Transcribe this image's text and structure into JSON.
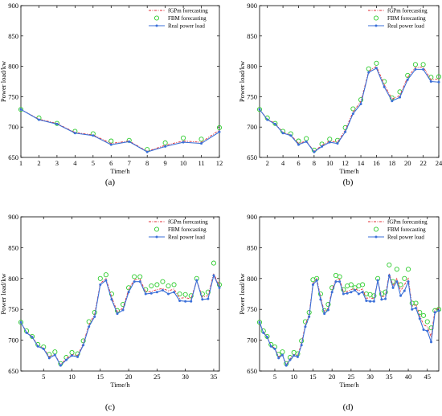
{
  "panels_meta": {
    "legend": {
      "fgpm": "fGPm forecasting",
      "fbm": "FBM forecasting",
      "real": "Real power load"
    },
    "colors": {
      "fgpm": "#e0323a",
      "fbm": "#2ecc2e",
      "real": "#3a6fd8"
    },
    "legend_position": "top-right",
    "grid": false
  },
  "chart_data": [
    {
      "type": "line",
      "label": "(a)",
      "xlabel": "Time/h",
      "ylabel": "Power load/kw",
      "xlim": [
        1,
        12
      ],
      "ylim": [
        650,
        900
      ],
      "xticks": [
        1,
        2,
        3,
        4,
        5,
        6,
        7,
        8,
        9,
        10,
        11,
        12
      ],
      "yticks": [
        650,
        700,
        750,
        800,
        850,
        900
      ],
      "x": [
        1,
        2,
        3,
        4,
        5,
        6,
        7,
        8,
        9,
        10,
        11,
        12
      ],
      "series": [
        {
          "name": "fGPm forecasting",
          "values": [
            729,
            713,
            706,
            691,
            687,
            673,
            677,
            660,
            670,
            677,
            675,
            695
          ]
        },
        {
          "name": "FBM forecasting",
          "values": [
            729,
            715,
            706,
            693,
            689,
            677,
            678,
            663,
            674,
            682,
            680,
            699
          ]
        },
        {
          "name": "Real power load",
          "values": [
            729,
            712,
            705,
            690,
            686,
            671,
            676,
            659,
            668,
            675,
            673,
            692
          ]
        }
      ]
    },
    {
      "type": "line",
      "label": "(b)",
      "xlabel": "Time/h",
      "ylabel": "Power load/kw",
      "xlim": [
        1,
        24
      ],
      "ylim": [
        650,
        900
      ],
      "xticks": [
        2,
        4,
        6,
        8,
        10,
        12,
        14,
        16,
        18,
        20,
        22,
        24
      ],
      "yticks": [
        650,
        700,
        750,
        800,
        850,
        900
      ],
      "x": [
        1,
        2,
        3,
        4,
        5,
        6,
        7,
        8,
        9,
        10,
        11,
        12,
        13,
        14,
        15,
        16,
        17,
        18,
        19,
        20,
        21,
        22,
        23,
        24
      ],
      "series": [
        {
          "name": "fGPm forecasting",
          "values": [
            729,
            713,
            706,
            691,
            687,
            673,
            677,
            660,
            670,
            677,
            675,
            695,
            725,
            742,
            792,
            800,
            770,
            746,
            752,
            782,
            798,
            799,
            778,
            779
          ]
        },
        {
          "name": "FBM forecasting",
          "values": [
            729,
            715,
            706,
            693,
            689,
            677,
            681,
            662,
            672,
            680,
            678,
            699,
            730,
            745,
            796,
            805,
            775,
            748,
            758,
            785,
            803,
            803,
            782,
            783
          ]
        },
        {
          "name": "Real power load",
          "values": [
            729,
            712,
            705,
            690,
            686,
            671,
            676,
            659,
            668,
            675,
            673,
            692,
            722,
            738,
            790,
            797,
            766,
            743,
            749,
            778,
            795,
            795,
            775,
            774
          ]
        }
      ]
    },
    {
      "type": "line",
      "label": "(c)",
      "xlabel": "Time/h",
      "ylabel": "Power load/kw",
      "xlim": [
        1,
        36
      ],
      "ylim": [
        650,
        900
      ],
      "xticks": [
        5,
        10,
        15,
        20,
        25,
        30,
        35
      ],
      "yticks": [
        650,
        700,
        750,
        800,
        850,
        900
      ],
      "x": [
        1,
        2,
        3,
        4,
        5,
        6,
        7,
        8,
        9,
        10,
        11,
        12,
        13,
        14,
        15,
        16,
        17,
        18,
        19,
        20,
        21,
        22,
        23,
        24,
        25,
        26,
        27,
        28,
        29,
        30,
        31,
        32,
        33,
        34,
        35,
        36
      ],
      "series": [
        {
          "name": "fGPm forecasting",
          "values": [
            729,
            713,
            706,
            691,
            687,
            673,
            677,
            660,
            670,
            677,
            675,
            695,
            725,
            742,
            792,
            800,
            770,
            746,
            752,
            782,
            798,
            799,
            778,
            779,
            782,
            784,
            780,
            783,
            768,
            769,
            767,
            797,
            770,
            772,
            808,
            788
          ]
        },
        {
          "name": "FBM forecasting",
          "values": [
            729,
            715,
            706,
            693,
            689,
            677,
            681,
            662,
            672,
            680,
            678,
            699,
            730,
            745,
            800,
            806,
            775,
            748,
            758,
            785,
            803,
            803,
            782,
            788,
            790,
            795,
            788,
            790,
            775,
            774,
            772,
            800,
            775,
            778,
            825,
            790
          ]
        },
        {
          "name": "Real power load",
          "values": [
            729,
            712,
            705,
            690,
            686,
            671,
            676,
            659,
            668,
            675,
            673,
            692,
            722,
            738,
            790,
            797,
            766,
            743,
            749,
            778,
            795,
            795,
            775,
            776,
            778,
            781,
            775,
            778,
            764,
            763,
            763,
            797,
            766,
            767,
            805,
            785
          ]
        }
      ]
    },
    {
      "type": "line",
      "label": "(d)",
      "xlabel": "Time/h",
      "ylabel": "Power load/kw",
      "xlim": [
        1,
        48
      ],
      "ylim": [
        650,
        900
      ],
      "xticks": [
        5,
        10,
        15,
        20,
        25,
        30,
        35,
        40,
        45
      ],
      "yticks": [
        650,
        700,
        750,
        800,
        850,
        900
      ],
      "x": [
        1,
        2,
        3,
        4,
        5,
        6,
        7,
        8,
        9,
        10,
        11,
        12,
        13,
        14,
        15,
        16,
        17,
        18,
        19,
        20,
        21,
        22,
        23,
        24,
        25,
        26,
        27,
        28,
        29,
        30,
        31,
        32,
        33,
        34,
        35,
        36,
        37,
        38,
        39,
        40,
        41,
        42,
        43,
        44,
        45,
        46,
        47,
        48
      ],
      "series": [
        {
          "name": "fGPm forecasting",
          "values": [
            729,
            713,
            706,
            691,
            687,
            673,
            677,
            660,
            670,
            677,
            675,
            695,
            725,
            742,
            792,
            800,
            770,
            746,
            752,
            782,
            798,
            799,
            778,
            779,
            782,
            784,
            780,
            783,
            768,
            769,
            767,
            797,
            770,
            772,
            808,
            788,
            800,
            780,
            790,
            800,
            755,
            758,
            740,
            725,
            722,
            705,
            750,
            752
          ]
        },
        {
          "name": "FBM forecasting",
          "values": [
            729,
            715,
            706,
            693,
            689,
            677,
            681,
            662,
            672,
            680,
            678,
            699,
            730,
            745,
            798,
            800,
            775,
            748,
            758,
            785,
            805,
            803,
            782,
            788,
            790,
            785,
            788,
            790,
            775,
            774,
            772,
            800,
            775,
            778,
            822,
            795,
            815,
            790,
            800,
            815,
            760,
            760,
            745,
            740,
            730,
            720,
            748,
            750
          ]
        },
        {
          "name": "Real power load",
          "values": [
            729,
            712,
            705,
            690,
            686,
            671,
            676,
            659,
            668,
            675,
            673,
            692,
            722,
            738,
            790,
            797,
            766,
            743,
            749,
            778,
            795,
            795,
            775,
            776,
            778,
            781,
            775,
            778,
            764,
            763,
            763,
            797,
            766,
            767,
            805,
            785,
            795,
            772,
            780,
            795,
            750,
            752,
            735,
            717,
            715,
            697,
            745,
            748
          ]
        }
      ]
    }
  ]
}
